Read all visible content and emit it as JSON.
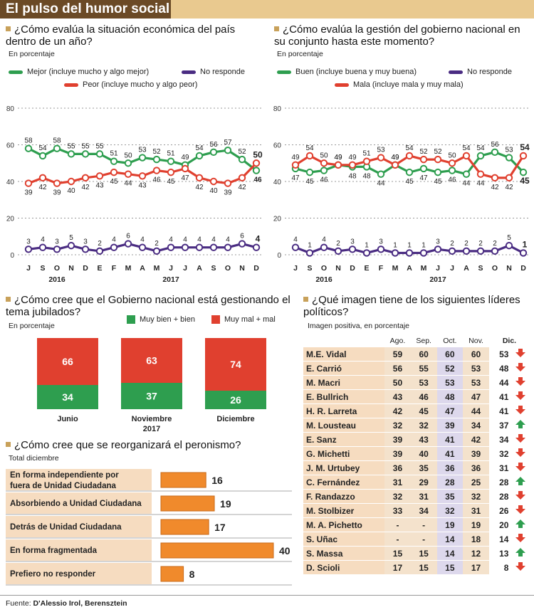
{
  "banner": {
    "title": "El pulso del humor social"
  },
  "econ": {
    "question": "¿Cómo evalúa la situación económica del país dentro de un año?",
    "subtitle": "En porcentaje",
    "legend": {
      "green": "Mejor (incluye mucho y algo mejor)",
      "red": "Peor (incluye mucho y algo peor)",
      "purple": "No responde"
    }
  },
  "gov": {
    "question": "¿Cómo evalúa la gestión del gobierno nacional en su conjunto hasta este momento?",
    "subtitle": "En porcentaje",
    "legend": {
      "green": "Buen (incluye buena y muy buena)",
      "red": "Mala (incluye mala y muy mala)",
      "purple": "No responde"
    }
  },
  "pens": {
    "question": "¿Cómo cree que el Gobierno nacional está gestionando el tema jubilados?",
    "subtitle": "En porcentaje",
    "legend": {
      "good": "Muy bien + bien",
      "bad": "Muy mal + mal"
    }
  },
  "peron": {
    "question": "¿Cómo cree que se reorganizará el peronismo?",
    "subtitle": "Total diciembre"
  },
  "leaders": {
    "question": "¿Qué imagen tiene de los siguientes líderes políticos?",
    "subtitle": "Imagen positiva,  en porcentaje",
    "headers": [
      "Ago.",
      "Sep.",
      "Oct.",
      "Nov.",
      "Dic."
    ],
    "rows": [
      {
        "name": "M.E. Vidal",
        "vals": [
          "59",
          "60",
          "60",
          "60",
          "53"
        ],
        "trend": "down"
      },
      {
        "name": "E. Carrió",
        "vals": [
          "56",
          "55",
          "52",
          "53",
          "48"
        ],
        "trend": "down"
      },
      {
        "name": "M. Macri",
        "vals": [
          "50",
          "53",
          "53",
          "53",
          "44"
        ],
        "trend": "down"
      },
      {
        "name": "E. Bullrich",
        "vals": [
          "43",
          "46",
          "48",
          "47",
          "41"
        ],
        "trend": "down"
      },
      {
        "name": "H. R. Larreta",
        "vals": [
          "42",
          "45",
          "47",
          "44",
          "41"
        ],
        "trend": "down"
      },
      {
        "name": "M. Lousteau",
        "vals": [
          "32",
          "32",
          "39",
          "34",
          "37"
        ],
        "trend": "up"
      },
      {
        "name": "E. Sanz",
        "vals": [
          "39",
          "43",
          "41",
          "42",
          "34"
        ],
        "trend": "down"
      },
      {
        "name": "G. Michetti",
        "vals": [
          "39",
          "40",
          "41",
          "39",
          "32"
        ],
        "trend": "down"
      },
      {
        "name": "J. M. Urtubey",
        "vals": [
          "36",
          "35",
          "36",
          "36",
          "31"
        ],
        "trend": "down"
      },
      {
        "name": "C. Fernández",
        "vals": [
          "31",
          "29",
          "28",
          "25",
          "28"
        ],
        "trend": "up"
      },
      {
        "name": "F. Randazzo",
        "vals": [
          "32",
          "31",
          "35",
          "32",
          "28"
        ],
        "trend": "down"
      },
      {
        "name": "M. Stolbizer",
        "vals": [
          "33",
          "34",
          "32",
          "31",
          "26"
        ],
        "trend": "down"
      },
      {
        "name": "M. A. Pichetto",
        "vals": [
          "-",
          "-",
          "19",
          "19",
          "20"
        ],
        "trend": "up"
      },
      {
        "name": "S. Uñac",
        "vals": [
          "-",
          "-",
          "14",
          "18",
          "14"
        ],
        "trend": "down"
      },
      {
        "name": "S. Massa",
        "vals": [
          "15",
          "15",
          "14",
          "12",
          "13"
        ],
        "trend": "up"
      },
      {
        "name": "D. Scioli",
        "vals": [
          "17",
          "15",
          "15",
          "17",
          "8"
        ],
        "trend": "down"
      }
    ]
  },
  "footer": {
    "label": "Fuente: ",
    "source": "D'Alessio Irol, Berensztein"
  },
  "colors": {
    "green": "#2e9e4f",
    "red": "#e0402f",
    "purple": "#4a2c82",
    "orange": "#f08a2c",
    "up": "#2e9e4f",
    "down": "#e0402f"
  },
  "chart_data": [
    {
      "type": "line",
      "title": "¿Cómo evalúa la situación económica del país dentro de un año?",
      "x": [
        "J",
        "S",
        "O",
        "N",
        "D",
        "E",
        "F",
        "M",
        "A",
        "M",
        "J",
        "J",
        "A",
        "S",
        "O",
        "N",
        "D"
      ],
      "year_labels": [
        "2016",
        "2017"
      ],
      "ylim": [
        0,
        80
      ],
      "yticks": [
        0,
        20,
        40,
        60,
        80
      ],
      "series": [
        {
          "name": "Mejor (incluye mucho y algo mejor)",
          "color": "#2e9e4f",
          "values": [
            58,
            54,
            58,
            55,
            55,
            55,
            51,
            50,
            53,
            52,
            51,
            49,
            54,
            56,
            57,
            52,
            46
          ],
          "last_bold": false
        },
        {
          "name": "Peor (incluye mucho y algo peor)",
          "color": "#e0402f",
          "values": [
            39,
            42,
            39,
            40,
            42,
            43,
            45,
            44,
            43,
            46,
            45,
            47,
            42,
            40,
            39,
            42,
            50
          ],
          "last_bold": true
        },
        {
          "name": "No responde",
          "color": "#4a2c82",
          "values": [
            3,
            4,
            3,
            5,
            3,
            2,
            4,
            6,
            4,
            2,
            4,
            4,
            4,
            4,
            4,
            6,
            4
          ],
          "last_bold": true
        }
      ]
    },
    {
      "type": "line",
      "title": "¿Cómo evalúa la gestión del gobierno nacional en su conjunto hasta este momento?",
      "x": [
        "J",
        "S",
        "O",
        "N",
        "D",
        "E",
        "F",
        "M",
        "A",
        "M",
        "J",
        "J",
        "A",
        "S",
        "O",
        "N",
        "D"
      ],
      "year_labels": [
        "2016",
        "2017"
      ],
      "ylim": [
        0,
        80
      ],
      "yticks": [
        0,
        20,
        40,
        60,
        80
      ],
      "series": [
        {
          "name": "Buen (incluye buena y muy buena)",
          "color": "#2e9e4f",
          "values": [
            47,
            45,
            46,
            49,
            48,
            48,
            44,
            49,
            45,
            47,
            45,
            46,
            44,
            54,
            56,
            53,
            45
          ],
          "last_bold": true
        },
        {
          "name": "Mala (incluye mala y muy mala)",
          "color": "#e0402f",
          "values": [
            49,
            54,
            50,
            49,
            49,
            51,
            53,
            49,
            54,
            52,
            52,
            50,
            54,
            44,
            42,
            42,
            54
          ],
          "last_bold": true
        },
        {
          "name": "No responde",
          "color": "#4a2c82",
          "values": [
            4,
            1,
            4,
            2,
            3,
            1,
            3,
            1,
            1,
            1,
            3,
            2,
            2,
            2,
            2,
            5,
            1
          ],
          "last_bold": true
        }
      ]
    },
    {
      "type": "bar",
      "stacked": true,
      "title": "¿Cómo cree que el Gobierno nacional está gestionando el tema jubilados?",
      "categories": [
        "Junio",
        "Noviembre",
        "Diciembre"
      ],
      "sub_labels": [
        "",
        "2017",
        ""
      ],
      "series": [
        {
          "name": "Muy bien + bien",
          "color": "#2e9e4f",
          "values": [
            34,
            37,
            26
          ]
        },
        {
          "name": "Muy mal + mal",
          "color": "#e0402f",
          "values": [
            66,
            63,
            74
          ]
        }
      ],
      "ylim": [
        0,
        100
      ]
    },
    {
      "type": "bar",
      "orientation": "horizontal",
      "title": "¿Cómo cree que se reorganizará el peronismo?",
      "categories": [
        "En forma independiente por fuera de Unidad Ciudadana",
        "Absorbiendo a Unidad Ciudadana",
        "Detrás de Unidad Ciudadana",
        "En forma fragmentada",
        "Prefiero no responder"
      ],
      "category_lines": [
        [
          "En forma independiente por",
          "fuera de Unidad Ciudadana"
        ],
        [
          "Absorbiendo a Unidad Ciudadana"
        ],
        [
          "Detrás de Unidad Ciudadana"
        ],
        [
          "En forma fragmentada"
        ],
        [
          "Prefiero no responder"
        ]
      ],
      "values": [
        16,
        19,
        17,
        40,
        8
      ],
      "xlim": [
        0,
        40
      ]
    }
  ]
}
